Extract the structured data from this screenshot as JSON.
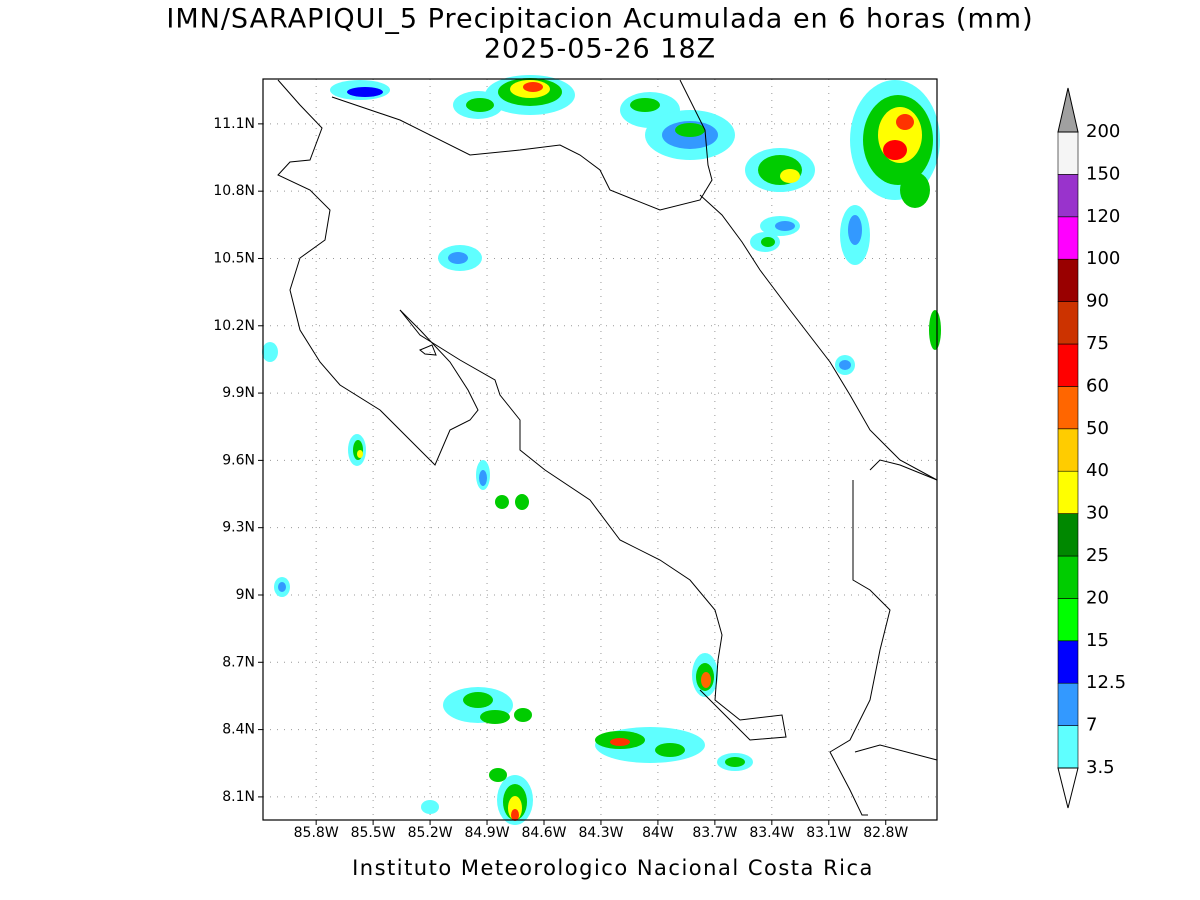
{
  "header": {
    "title": "IMN/SARAPIQUI_5 Precipitacion Acumulada en 6 horas (mm)",
    "subtitle": "2025-05-26 18Z"
  },
  "map": {
    "lon_range": [
      -86.08,
      -82.53
    ],
    "lat_range": [
      7.997,
      11.3
    ],
    "lon_ticks": [
      {
        "value": -85.8,
        "label": "85.8W"
      },
      {
        "value": -85.5,
        "label": "85.5W"
      },
      {
        "value": -85.2,
        "label": "85.2W"
      },
      {
        "value": -84.9,
        "label": "84.9W"
      },
      {
        "value": -84.6,
        "label": "84.6W"
      },
      {
        "value": -84.3,
        "label": "84.3W"
      },
      {
        "value": -84,
        "label": "84W"
      },
      {
        "value": -83.7,
        "label": "83.7W"
      },
      {
        "value": -83.4,
        "label": "83.4W"
      },
      {
        "value": -83.1,
        "label": "83.1W"
      },
      {
        "value": -82.8,
        "label": "82.8W"
      }
    ],
    "lat_ticks": [
      {
        "value": 8.1,
        "label": "8.1N"
      },
      {
        "value": 8.4,
        "label": "8.4N"
      },
      {
        "value": 8.7,
        "label": "8.7N"
      },
      {
        "value": 9,
        "label": "9N"
      },
      {
        "value": 9.3,
        "label": "9.3N"
      },
      {
        "value": 9.6,
        "label": "9.6N"
      },
      {
        "value": 9.9,
        "label": "9.9N"
      },
      {
        "value": 10.2,
        "label": "10.2N"
      },
      {
        "value": 10.5,
        "label": "10.5N"
      },
      {
        "value": 10.8,
        "label": "10.8N"
      },
      {
        "value": 11.1,
        "label": "11.1N"
      }
    ],
    "grid": true
  },
  "colorbar": {
    "levels": [
      3.5,
      7,
      12.5,
      15,
      20,
      25,
      30,
      40,
      50,
      60,
      75,
      90,
      100,
      120,
      150,
      200
    ],
    "colors": [
      "#5fffff",
      "#3399ff",
      "#0000ff",
      "#00ff00",
      "#00cc00",
      "#008800",
      "#ffff00",
      "#ffcc00",
      "#ff6600",
      "#ff0000",
      "#cc3300",
      "#990000",
      "#ff00ff",
      "#9933cc",
      "#f5f5f5"
    ],
    "over_color": "#a0a0a0",
    "under_color": "#ffffff"
  },
  "footer": {
    "text": "Instituto Meteorologico Nacional Costa Rica"
  }
}
